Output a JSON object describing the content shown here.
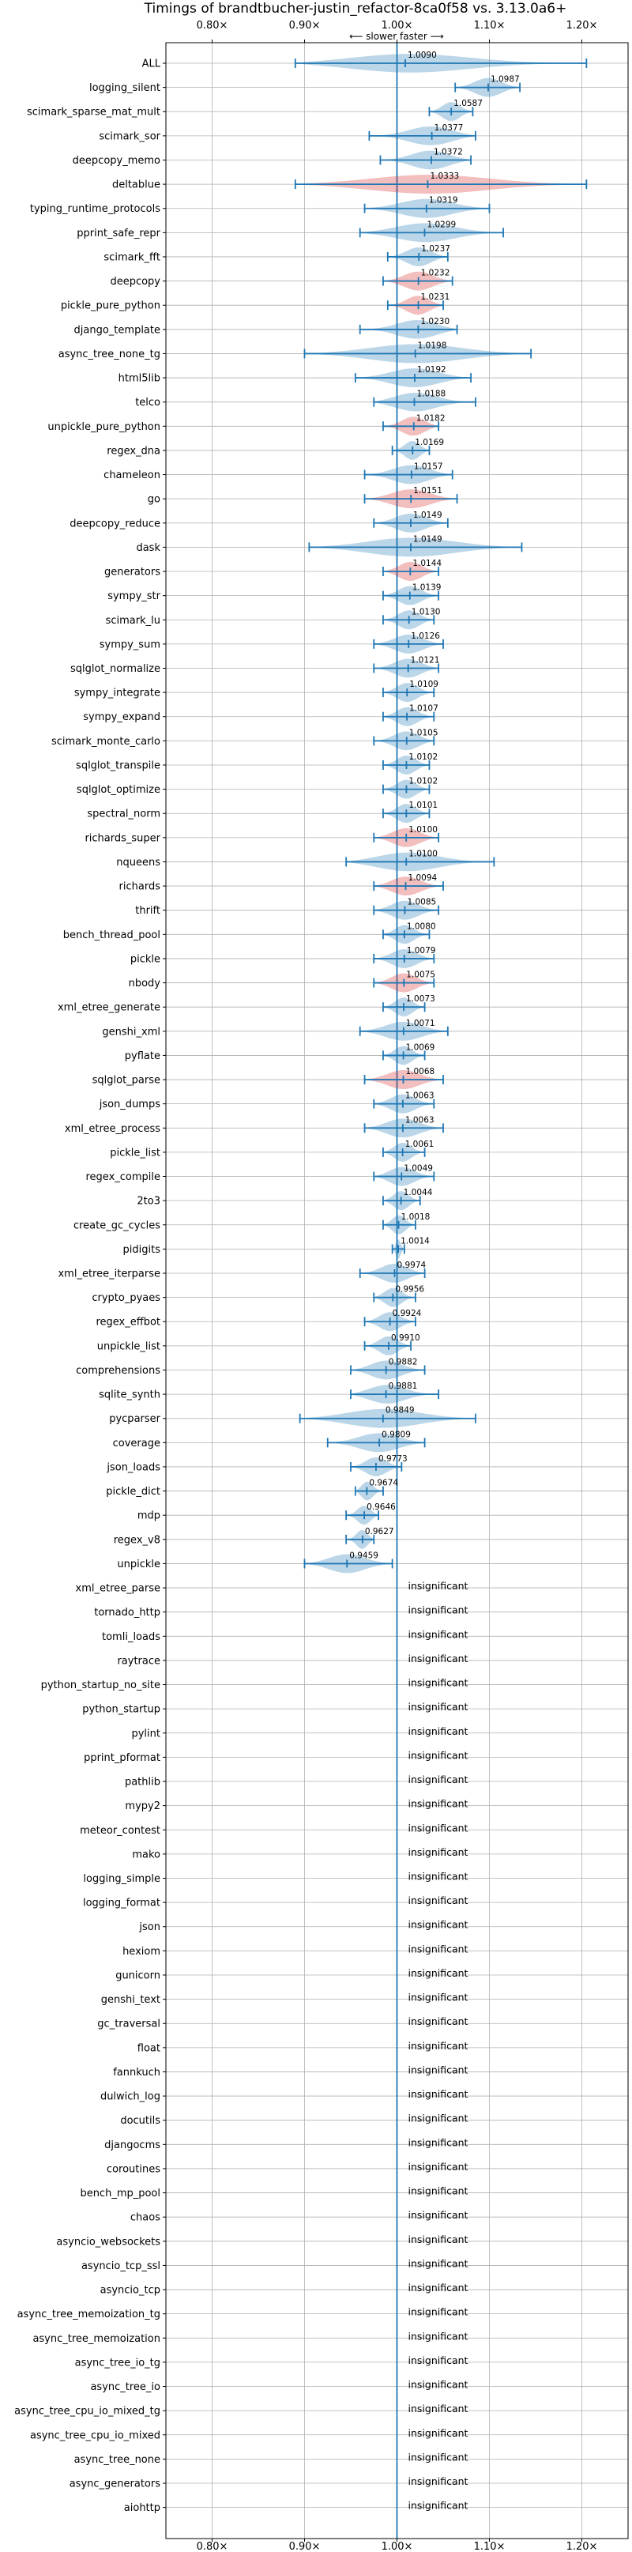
{
  "chart_data": {
    "type": "violin",
    "title": "Timings of brandtbucher-justin_refactor-8ca0f58 vs. 3.13.0a6+",
    "direction_label": "⟵ slower  faster ⟶",
    "xlim": [
      0.75,
      1.25
    ],
    "xticks": [
      0.8,
      0.9,
      1.0,
      1.1,
      1.2
    ],
    "xtick_labels": [
      "0.80×",
      "0.90×",
      "1.00×",
      "1.10×",
      "1.20×"
    ],
    "reference_line": 1.0,
    "grid": true,
    "colors": {
      "normal": "#1f77b4",
      "highlight": "#d62728",
      "axis": "#000000",
      "grid": "#b0b0b0"
    },
    "insignificant_label": "insignificant",
    "rows": [
      {
        "name": "ALL",
        "value": 1.009,
        "label": "1.0090",
        "lo": 0.89,
        "hi": 1.205,
        "highlight": false
      },
      {
        "name": "logging_silent",
        "value": 1.0987,
        "label": "1.0987",
        "lo": 1.063,
        "hi": 1.133,
        "highlight": false
      },
      {
        "name": "scimark_sparse_mat_mult",
        "value": 1.0587,
        "label": "1.0587",
        "lo": 1.035,
        "hi": 1.082,
        "highlight": false
      },
      {
        "name": "scimark_sor",
        "value": 1.0377,
        "label": "1.0377",
        "lo": 0.97,
        "hi": 1.085,
        "highlight": false
      },
      {
        "name": "deepcopy_memo",
        "value": 1.0372,
        "label": "1.0372",
        "lo": 0.982,
        "hi": 1.08,
        "highlight": false
      },
      {
        "name": "deltablue",
        "value": 1.0333,
        "label": "1.0333",
        "lo": 0.89,
        "hi": 1.205,
        "highlight": true
      },
      {
        "name": "typing_runtime_protocols",
        "value": 1.0319,
        "label": "1.0319",
        "lo": 0.965,
        "hi": 1.1,
        "highlight": false
      },
      {
        "name": "pprint_safe_repr",
        "value": 1.0299,
        "label": "1.0299",
        "lo": 0.96,
        "hi": 1.115,
        "highlight": false
      },
      {
        "name": "scimark_fft",
        "value": 1.0237,
        "label": "1.0237",
        "lo": 0.99,
        "hi": 1.055,
        "highlight": false
      },
      {
        "name": "deepcopy",
        "value": 1.0232,
        "label": "1.0232",
        "lo": 0.985,
        "hi": 1.06,
        "highlight": true
      },
      {
        "name": "pickle_pure_python",
        "value": 1.0231,
        "label": "1.0231",
        "lo": 0.99,
        "hi": 1.05,
        "highlight": true
      },
      {
        "name": "django_template",
        "value": 1.023,
        "label": "1.0230",
        "lo": 0.96,
        "hi": 1.065,
        "highlight": false
      },
      {
        "name": "async_tree_none_tg",
        "value": 1.0198,
        "label": "1.0198",
        "lo": 0.9,
        "hi": 1.145,
        "highlight": false
      },
      {
        "name": "html5lib",
        "value": 1.0192,
        "label": "1.0192",
        "lo": 0.955,
        "hi": 1.08,
        "highlight": false
      },
      {
        "name": "telco",
        "value": 1.0188,
        "label": "1.0188",
        "lo": 0.975,
        "hi": 1.085,
        "highlight": false
      },
      {
        "name": "unpickle_pure_python",
        "value": 1.0182,
        "label": "1.0182",
        "lo": 0.985,
        "hi": 1.045,
        "highlight": true
      },
      {
        "name": "regex_dna",
        "value": 1.0169,
        "label": "1.0169",
        "lo": 0.995,
        "hi": 1.035,
        "highlight": false
      },
      {
        "name": "chameleon",
        "value": 1.0157,
        "label": "1.0157",
        "lo": 0.965,
        "hi": 1.06,
        "highlight": false
      },
      {
        "name": "go",
        "value": 1.0151,
        "label": "1.0151",
        "lo": 0.965,
        "hi": 1.065,
        "highlight": true
      },
      {
        "name": "deepcopy_reduce",
        "value": 1.0149,
        "label": "1.0149",
        "lo": 0.975,
        "hi": 1.055,
        "highlight": false
      },
      {
        "name": "dask",
        "value": 1.0149,
        "label": "1.0149",
        "lo": 0.905,
        "hi": 1.135,
        "highlight": false
      },
      {
        "name": "generators",
        "value": 1.0144,
        "label": "1.0144",
        "lo": 0.985,
        "hi": 1.045,
        "highlight": true
      },
      {
        "name": "sympy_str",
        "value": 1.0139,
        "label": "1.0139",
        "lo": 0.985,
        "hi": 1.045,
        "highlight": false
      },
      {
        "name": "scimark_lu",
        "value": 1.013,
        "label": "1.0130",
        "lo": 0.985,
        "hi": 1.04,
        "highlight": false
      },
      {
        "name": "sympy_sum",
        "value": 1.0126,
        "label": "1.0126",
        "lo": 0.975,
        "hi": 1.05,
        "highlight": false
      },
      {
        "name": "sqlglot_normalize",
        "value": 1.0121,
        "label": "1.0121",
        "lo": 0.975,
        "hi": 1.045,
        "highlight": false
      },
      {
        "name": "sympy_integrate",
        "value": 1.0109,
        "label": "1.0109",
        "lo": 0.985,
        "hi": 1.04,
        "highlight": false
      },
      {
        "name": "sympy_expand",
        "value": 1.0107,
        "label": "1.0107",
        "lo": 0.985,
        "hi": 1.04,
        "highlight": false
      },
      {
        "name": "scimark_monte_carlo",
        "value": 1.0105,
        "label": "1.0105",
        "lo": 0.975,
        "hi": 1.04,
        "highlight": false
      },
      {
        "name": "sqlglot_transpile",
        "value": 1.0102,
        "label": "1.0102",
        "lo": 0.985,
        "hi": 1.035,
        "highlight": false
      },
      {
        "name": "sqlglot_optimize",
        "value": 1.0102,
        "label": "1.0102",
        "lo": 0.985,
        "hi": 1.035,
        "highlight": false
      },
      {
        "name": "spectral_norm",
        "value": 1.0101,
        "label": "1.0101",
        "lo": 0.985,
        "hi": 1.035,
        "highlight": false
      },
      {
        "name": "richards_super",
        "value": 1.01,
        "label": "1.0100",
        "lo": 0.975,
        "hi": 1.045,
        "highlight": true
      },
      {
        "name": "nqueens",
        "value": 1.01,
        "label": "1.0100",
        "lo": 0.945,
        "hi": 1.105,
        "highlight": false
      },
      {
        "name": "richards",
        "value": 1.0094,
        "label": "1.0094",
        "lo": 0.975,
        "hi": 1.05,
        "highlight": true
      },
      {
        "name": "thrift",
        "value": 1.0085,
        "label": "1.0085",
        "lo": 0.975,
        "hi": 1.045,
        "highlight": false
      },
      {
        "name": "bench_thread_pool",
        "value": 1.008,
        "label": "1.0080",
        "lo": 0.985,
        "hi": 1.035,
        "highlight": false
      },
      {
        "name": "pickle",
        "value": 1.0079,
        "label": "1.0079",
        "lo": 0.975,
        "hi": 1.04,
        "highlight": false
      },
      {
        "name": "nbody",
        "value": 1.0075,
        "label": "1.0075",
        "lo": 0.975,
        "hi": 1.04,
        "highlight": true
      },
      {
        "name": "xml_etree_generate",
        "value": 1.0073,
        "label": "1.0073",
        "lo": 0.985,
        "hi": 1.03,
        "highlight": false
      },
      {
        "name": "genshi_xml",
        "value": 1.0071,
        "label": "1.0071",
        "lo": 0.96,
        "hi": 1.055,
        "highlight": false
      },
      {
        "name": "pyflate",
        "value": 1.0069,
        "label": "1.0069",
        "lo": 0.985,
        "hi": 1.03,
        "highlight": false
      },
      {
        "name": "sqlglot_parse",
        "value": 1.0068,
        "label": "1.0068",
        "lo": 0.965,
        "hi": 1.05,
        "highlight": true
      },
      {
        "name": "json_dumps",
        "value": 1.0063,
        "label": "1.0063",
        "lo": 0.975,
        "hi": 1.04,
        "highlight": false
      },
      {
        "name": "xml_etree_process",
        "value": 1.0063,
        "label": "1.0063",
        "lo": 0.965,
        "hi": 1.05,
        "highlight": false
      },
      {
        "name": "pickle_list",
        "value": 1.0061,
        "label": "1.0061",
        "lo": 0.985,
        "hi": 1.03,
        "highlight": false
      },
      {
        "name": "regex_compile",
        "value": 1.0049,
        "label": "1.0049",
        "lo": 0.975,
        "hi": 1.04,
        "highlight": false
      },
      {
        "name": "2to3",
        "value": 1.0044,
        "label": "1.0044",
        "lo": 0.985,
        "hi": 1.025,
        "highlight": false
      },
      {
        "name": "create_gc_cycles",
        "value": 1.0018,
        "label": "1.0018",
        "lo": 0.985,
        "hi": 1.02,
        "highlight": false
      },
      {
        "name": "pidigits",
        "value": 1.0014,
        "label": "1.0014",
        "lo": 0.995,
        "hi": 1.008,
        "highlight": false
      },
      {
        "name": "xml_etree_iterparse",
        "value": 0.9974,
        "label": "0.9974",
        "lo": 0.96,
        "hi": 1.03,
        "highlight": false
      },
      {
        "name": "crypto_pyaes",
        "value": 0.9956,
        "label": "0.9956",
        "lo": 0.975,
        "hi": 1.02,
        "highlight": false
      },
      {
        "name": "regex_effbot",
        "value": 0.9924,
        "label": "0.9924",
        "lo": 0.965,
        "hi": 1.02,
        "highlight": false
      },
      {
        "name": "unpickle_list",
        "value": 0.991,
        "label": "0.9910",
        "lo": 0.965,
        "hi": 1.015,
        "highlight": false
      },
      {
        "name": "comprehensions",
        "value": 0.9882,
        "label": "0.9882",
        "lo": 0.95,
        "hi": 1.03,
        "highlight": false
      },
      {
        "name": "sqlite_synth",
        "value": 0.9881,
        "label": "0.9881",
        "lo": 0.95,
        "hi": 1.045,
        "highlight": false
      },
      {
        "name": "pycparser",
        "value": 0.9849,
        "label": "0.9849",
        "lo": 0.895,
        "hi": 1.085,
        "highlight": false
      },
      {
        "name": "coverage",
        "value": 0.9809,
        "label": "0.9809",
        "lo": 0.925,
        "hi": 1.03,
        "highlight": false
      },
      {
        "name": "json_loads",
        "value": 0.9773,
        "label": "0.9773",
        "lo": 0.95,
        "hi": 1.005,
        "highlight": false
      },
      {
        "name": "pickle_dict",
        "value": 0.9674,
        "label": "0.9674",
        "lo": 0.955,
        "hi": 0.985,
        "highlight": false
      },
      {
        "name": "mdp",
        "value": 0.9646,
        "label": "0.9646",
        "lo": 0.945,
        "hi": 0.98,
        "highlight": false
      },
      {
        "name": "regex_v8",
        "value": 0.9627,
        "label": "0.9627",
        "lo": 0.945,
        "hi": 0.975,
        "highlight": false
      },
      {
        "name": "unpickle",
        "value": 0.9459,
        "label": "0.9459",
        "lo": 0.9,
        "hi": 0.995,
        "highlight": false
      },
      {
        "name": "xml_etree_parse",
        "insignificant": true
      },
      {
        "name": "tornado_http",
        "insignificant": true
      },
      {
        "name": "tomli_loads",
        "insignificant": true
      },
      {
        "name": "raytrace",
        "insignificant": true
      },
      {
        "name": "python_startup_no_site",
        "insignificant": true
      },
      {
        "name": "python_startup",
        "insignificant": true
      },
      {
        "name": "pylint",
        "insignificant": true
      },
      {
        "name": "pprint_pformat",
        "insignificant": true
      },
      {
        "name": "pathlib",
        "insignificant": true
      },
      {
        "name": "mypy2",
        "insignificant": true
      },
      {
        "name": "meteor_contest",
        "insignificant": true
      },
      {
        "name": "mako",
        "insignificant": true
      },
      {
        "name": "logging_simple",
        "insignificant": true
      },
      {
        "name": "logging_format",
        "insignificant": true
      },
      {
        "name": "json",
        "insignificant": true
      },
      {
        "name": "hexiom",
        "insignificant": true
      },
      {
        "name": "gunicorn",
        "insignificant": true
      },
      {
        "name": "genshi_text",
        "insignificant": true
      },
      {
        "name": "gc_traversal",
        "insignificant": true
      },
      {
        "name": "float",
        "insignificant": true
      },
      {
        "name": "fannkuch",
        "insignificant": true
      },
      {
        "name": "dulwich_log",
        "insignificant": true
      },
      {
        "name": "docutils",
        "insignificant": true
      },
      {
        "name": "djangocms",
        "insignificant": true
      },
      {
        "name": "coroutines",
        "insignificant": true
      },
      {
        "name": "bench_mp_pool",
        "insignificant": true
      },
      {
        "name": "chaos",
        "insignificant": true
      },
      {
        "name": "asyncio_websockets",
        "insignificant": true
      },
      {
        "name": "asyncio_tcp_ssl",
        "insignificant": true
      },
      {
        "name": "asyncio_tcp",
        "insignificant": true
      },
      {
        "name": "async_tree_memoization_tg",
        "insignificant": true
      },
      {
        "name": "async_tree_memoization",
        "insignificant": true
      },
      {
        "name": "async_tree_io_tg",
        "insignificant": true
      },
      {
        "name": "async_tree_io",
        "insignificant": true
      },
      {
        "name": "async_tree_cpu_io_mixed_tg",
        "insignificant": true
      },
      {
        "name": "async_tree_cpu_io_mixed",
        "insignificant": true
      },
      {
        "name": "async_tree_none",
        "insignificant": true
      },
      {
        "name": "async_generators",
        "insignificant": true
      },
      {
        "name": "aiohttp",
        "insignificant": true
      }
    ]
  }
}
